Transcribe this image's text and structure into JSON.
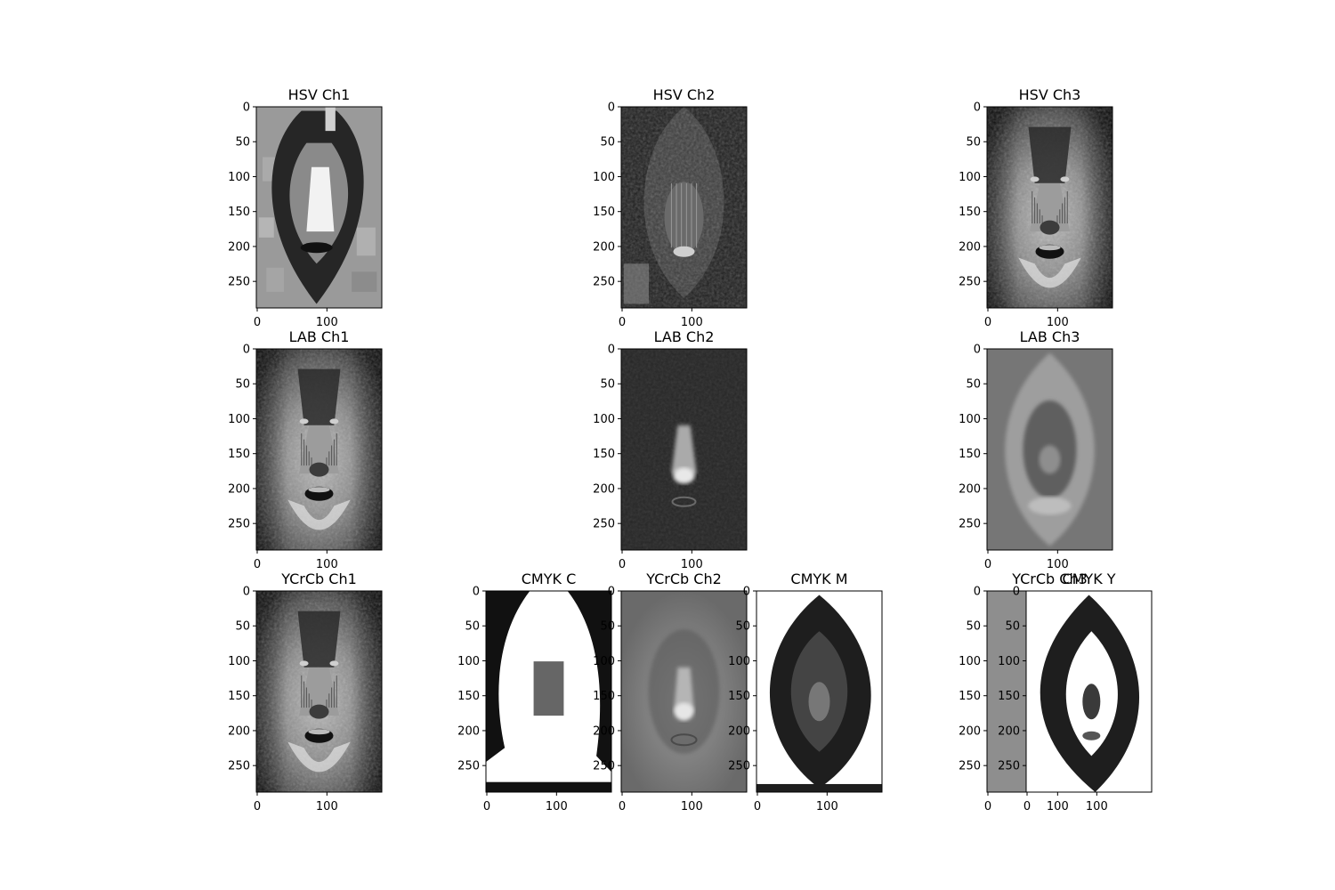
{
  "figure": {
    "background": "#ffffff",
    "subplots": [
      {
        "title": "HSV Ch1",
        "xticks": [
          "0",
          "100"
        ],
        "yticks": [
          "0",
          "50",
          "100",
          "150",
          "200",
          "250"
        ],
        "texture": "hsv1",
        "base": "#8a8a8a"
      },
      {
        "title": "HSV Ch2",
        "xticks": [
          "0",
          "100"
        ],
        "yticks": [
          "0",
          "50",
          "100",
          "150",
          "200",
          "250"
        ],
        "texture": "hsv2",
        "base": "#1e1e1e"
      },
      {
        "title": "HSV Ch3",
        "xticks": [
          "0",
          "100"
        ],
        "yticks": [
          "0",
          "50",
          "100",
          "150",
          "200",
          "250"
        ],
        "texture": "face",
        "base": "#3a3a3a"
      },
      {
        "title": "LAB Ch1",
        "xticks": [
          "0",
          "100"
        ],
        "yticks": [
          "0",
          "50",
          "100",
          "150",
          "200",
          "250"
        ],
        "texture": "face",
        "base": "#3a3a3a"
      },
      {
        "title": "LAB Ch2",
        "xticks": [
          "0",
          "100"
        ],
        "yticks": [
          "0",
          "50",
          "100",
          "150",
          "200",
          "250"
        ],
        "texture": "lab2",
        "base": "#262626"
      },
      {
        "title": "LAB Ch3",
        "xticks": [
          "0",
          "100"
        ],
        "yticks": [
          "0",
          "50",
          "100",
          "150",
          "200",
          "250"
        ],
        "texture": "lab3",
        "base": "#6e6e6e"
      },
      {
        "title": "YCrCb Ch1",
        "xticks": [
          "0",
          "100"
        ],
        "yticks": [
          "0",
          "50",
          "100",
          "150",
          "200",
          "250"
        ],
        "texture": "face",
        "base": "#3a3a3a"
      },
      {
        "title": "CMYK C",
        "xticks": [
          "0",
          "100"
        ],
        "yticks": [
          "0",
          "50",
          "100",
          "150",
          "200",
          "250"
        ],
        "texture": "cmykc",
        "base": "#ffffff"
      },
      {
        "title": "YCrCb Ch2",
        "xticks": [
          "0",
          "100"
        ],
        "yticks": [
          "0",
          "50",
          "100",
          "150",
          "200",
          "250"
        ],
        "texture": "ycrcb2",
        "base": "#6a6a6a"
      },
      {
        "title": "CMYK M",
        "xticks": [
          "0",
          "100"
        ],
        "yticks": [
          "0",
          "50",
          "100",
          "150",
          "200",
          "250"
        ],
        "texture": "cmykm",
        "base": "#ffffff"
      },
      {
        "title": "YCrCb Ch3",
        "xticks": [
          "0",
          "100"
        ],
        "yticks": [
          "0",
          "50",
          "100",
          "150",
          "200",
          "250"
        ],
        "texture": "ycrcb3",
        "base": "#909090"
      },
      {
        "title": "CMYK Y",
        "xticks": [
          "0",
          "100"
        ],
        "yticks": [
          "0",
          "50",
          "100",
          "150",
          "200",
          "250"
        ],
        "texture": "cmyky",
        "base": "#ffffff"
      }
    ]
  },
  "chart_data": {
    "type": "image-grid",
    "image_extent": {
      "width": 180,
      "height": 288
    },
    "panels": [
      "HSV Ch1",
      "HSV Ch2",
      "HSV Ch3",
      "LAB Ch1",
      "LAB Ch2",
      "LAB Ch3",
      "YCrCb Ch1",
      "CMYK C",
      "YCrCb Ch2",
      "CMYK M",
      "YCrCb Ch3",
      "CMYK Y"
    ],
    "xlim": [
      0,
      180
    ],
    "ylim": [
      288,
      0
    ],
    "colormap": "gray"
  }
}
